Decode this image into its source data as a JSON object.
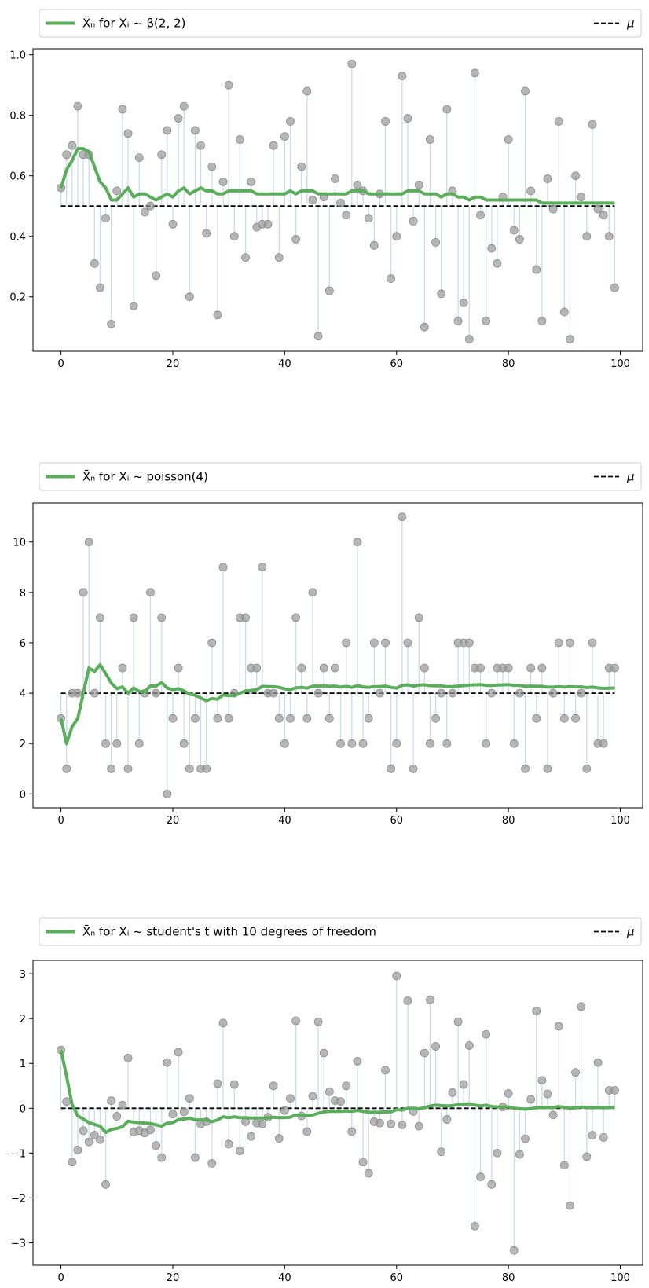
{
  "chart_data": [
    {
      "type": "line",
      "legend": {
        "series_label": "X̄ₙ for Xᵢ ~ β(2, 2)",
        "mu_label": "μ",
        "placement": "above-plot"
      },
      "mu": 0.5,
      "xlim": [
        -5,
        104
      ],
      "ylim": [
        0.02,
        1.02
      ],
      "xticks": [
        0,
        20,
        40,
        60,
        80,
        100
      ],
      "yticks": [
        0.2,
        0.4,
        0.6,
        0.8,
        1.0
      ],
      "ytick_labels": [
        "0.2",
        "0.4",
        "0.6",
        "0.8",
        "1.0"
      ],
      "samples": [
        0.56,
        0.67,
        0.7,
        0.83,
        0.67,
        0.67,
        0.31,
        0.23,
        0.46,
        0.11,
        0.55,
        0.82,
        0.74,
        0.17,
        0.66,
        0.48,
        0.5,
        0.27,
        0.67,
        0.75,
        0.44,
        0.79,
        0.83,
        0.2,
        0.75,
        0.7,
        0.41,
        0.63,
        0.14,
        0.58,
        0.9,
        0.4,
        0.72,
        0.33,
        0.58,
        0.43,
        0.44,
        0.44,
        0.7,
        0.33,
        0.73,
        0.78,
        0.39,
        0.63,
        0.88,
        0.52,
        0.07,
        0.53,
        0.22,
        0.59,
        0.51,
        0.47,
        0.97,
        0.57,
        0.55,
        0.46,
        0.37,
        0.54,
        0.78,
        0.26,
        0.4,
        0.93,
        0.79,
        0.45,
        0.57,
        0.1,
        0.72,
        0.38,
        0.21,
        0.82,
        0.55,
        0.12,
        0.18,
        0.06,
        0.94,
        0.47,
        0.12,
        0.36,
        0.31,
        0.53,
        0.72,
        0.42,
        0.39,
        0.88,
        0.55,
        0.29,
        0.12,
        0.59,
        0.49,
        0.78,
        0.15,
        0.06,
        0.6,
        0.53,
        0.4,
        0.77,
        0.49,
        0.47,
        0.4,
        0.23
      ],
      "running_mean": [
        0.56,
        0.62,
        0.65,
        0.69,
        0.69,
        0.68,
        0.63,
        0.58,
        0.56,
        0.52,
        0.52,
        0.54,
        0.56,
        0.53,
        0.54,
        0.54,
        0.53,
        0.52,
        0.53,
        0.54,
        0.53,
        0.55,
        0.56,
        0.54,
        0.55,
        0.56,
        0.55,
        0.55,
        0.54,
        0.54,
        0.55,
        0.55,
        0.55,
        0.55,
        0.55,
        0.54,
        0.54,
        0.54,
        0.54,
        0.54,
        0.54,
        0.55,
        0.54,
        0.55,
        0.55,
        0.55,
        0.54,
        0.54,
        0.54,
        0.54,
        0.54,
        0.54,
        0.55,
        0.55,
        0.55,
        0.54,
        0.54,
        0.54,
        0.54,
        0.54,
        0.54,
        0.54,
        0.55,
        0.55,
        0.55,
        0.54,
        0.54,
        0.54,
        0.53,
        0.54,
        0.54,
        0.53,
        0.53,
        0.52,
        0.53,
        0.53,
        0.52,
        0.52,
        0.52,
        0.52,
        0.52,
        0.52,
        0.52,
        0.52,
        0.52,
        0.52,
        0.51,
        0.51,
        0.51,
        0.51,
        0.51,
        0.51,
        0.51,
        0.51,
        0.51,
        0.51,
        0.51,
        0.51,
        0.51,
        0.51
      ]
    },
    {
      "type": "line",
      "legend": {
        "series_label": "X̄ₙ for Xᵢ ~ poisson(4)",
        "mu_label": "μ",
        "placement": "above-plot"
      },
      "mu": 4,
      "xlim": [
        -5,
        104
      ],
      "ylim": [
        -0.55,
        11.55
      ],
      "xticks": [
        0,
        20,
        40,
        60,
        80,
        100
      ],
      "yticks": [
        0,
        2,
        4,
        6,
        8,
        10
      ],
      "ytick_labels": [
        "0",
        "2",
        "4",
        "6",
        "8",
        "10"
      ],
      "samples": [
        3,
        1,
        4,
        4,
        8,
        10,
        4,
        7,
        2,
        1,
        2,
        5,
        1,
        7,
        2,
        4,
        8,
        4,
        7,
        0,
        3,
        5,
        2,
        1,
        3,
        1,
        1,
        6,
        3,
        9,
        3,
        4,
        7,
        7,
        5,
        5,
        9,
        4,
        4,
        3,
        2,
        3,
        7,
        5,
        3,
        8,
        4,
        5,
        3,
        5,
        2,
        6,
        2,
        10,
        2,
        3,
        6,
        4,
        6,
        1,
        2,
        11,
        6,
        1,
        7,
        5,
        2,
        3,
        4,
        2,
        4,
        6,
        6,
        6,
        5,
        5,
        2,
        4,
        5,
        5,
        5,
        2,
        4,
        1,
        5,
        3,
        5,
        1,
        4,
        6,
        3,
        6,
        3,
        4,
        1,
        6,
        2,
        2,
        5,
        5
      ],
      "running_mean": [
        3.0,
        2.0,
        2.67,
        3.0,
        4.0,
        5.0,
        4.86,
        5.13,
        4.78,
        4.4,
        4.18,
        4.25,
        4.0,
        4.21,
        4.07,
        4.06,
        4.29,
        4.28,
        4.42,
        4.2,
        4.14,
        4.18,
        4.09,
        3.96,
        3.92,
        3.81,
        3.7,
        3.79,
        3.76,
        3.93,
        3.9,
        3.91,
        4.0,
        4.09,
        4.11,
        4.14,
        4.27,
        4.26,
        4.26,
        4.23,
        4.17,
        4.14,
        4.21,
        4.23,
        4.2,
        4.28,
        4.28,
        4.29,
        4.27,
        4.28,
        4.24,
        4.27,
        4.23,
        4.3,
        4.25,
        4.23,
        4.26,
        4.26,
        4.28,
        4.23,
        4.2,
        4.31,
        4.33,
        4.28,
        4.32,
        4.33,
        4.3,
        4.29,
        4.29,
        4.26,
        4.26,
        4.28,
        4.3,
        4.32,
        4.33,
        4.34,
        4.31,
        4.31,
        4.32,
        4.33,
        4.34,
        4.31,
        4.31,
        4.27,
        4.28,
        4.27,
        4.27,
        4.24,
        4.24,
        4.26,
        4.24,
        4.26,
        4.25,
        4.25,
        4.22,
        4.24,
        4.21,
        4.19,
        4.2,
        4.21
      ]
    },
    {
      "type": "line",
      "legend": {
        "series_label": "X̄ₙ for Xᵢ ~ student's t with 10 degrees of freedom",
        "mu_label": "μ",
        "placement": "above-plot"
      },
      "mu": 0,
      "xlim": [
        -5,
        104
      ],
      "ylim": [
        -3.5,
        3.3
      ],
      "xticks": [
        0,
        20,
        40,
        60,
        80,
        100
      ],
      "yticks": [
        -3,
        -2,
        -1,
        0,
        1,
        2,
        3
      ],
      "ytick_labels": [
        "−3",
        "−2",
        "−1",
        "0",
        "1",
        "2",
        "3"
      ],
      "samples": [
        1.3,
        0.15,
        -1.2,
        -0.93,
        -0.5,
        -0.75,
        -0.6,
        -0.7,
        -1.7,
        0.17,
        -0.18,
        0.07,
        1.12,
        -0.53,
        -0.5,
        -0.55,
        -0.48,
        -0.83,
        -1.1,
        1.02,
        -0.13,
        1.25,
        -0.08,
        0.22,
        -1.1,
        -0.35,
        -0.3,
        -1.23,
        0.55,
        1.9,
        -0.8,
        0.53,
        -0.95,
        -0.3,
        -0.63,
        -0.33,
        -0.35,
        -0.2,
        0.5,
        -0.67,
        -0.05,
        0.22,
        1.95,
        -0.17,
        -0.52,
        0.27,
        1.93,
        1.23,
        0.37,
        0.17,
        0.15,
        0.5,
        -0.52,
        1.05,
        -1.2,
        -1.45,
        -0.3,
        -0.33,
        0.85,
        -0.35,
        2.95,
        -0.37,
        2.4,
        -0.07,
        -0.4,
        1.23,
        2.42,
        1.38,
        -0.97,
        -0.25,
        0.35,
        1.93,
        0.53,
        1.4,
        -2.63,
        -1.53,
        1.65,
        -1.7,
        -1.0,
        0.03,
        0.33,
        -3.17,
        -1.03,
        -0.68,
        0.2,
        2.17,
        0.62,
        0.32,
        -0.15,
        1.83,
        -1.27,
        -2.17,
        0.8,
        2.27,
        -1.08,
        -0.6,
        1.02,
        -0.65,
        0.4,
        0.4
      ],
      "running_mean": [
        1.3,
        0.72,
        0.08,
        -0.17,
        -0.24,
        -0.32,
        -0.36,
        -0.4,
        -0.54,
        -0.47,
        -0.45,
        -0.41,
        -0.29,
        -0.31,
        -0.32,
        -0.33,
        -0.34,
        -0.37,
        -0.4,
        -0.33,
        -0.32,
        -0.25,
        -0.24,
        -0.22,
        -0.26,
        -0.26,
        -0.26,
        -0.3,
        -0.26,
        -0.19,
        -0.21,
        -0.19,
        -0.21,
        -0.21,
        -0.22,
        -0.22,
        -0.22,
        -0.22,
        -0.2,
        -0.21,
        -0.21,
        -0.2,
        -0.15,
        -0.15,
        -0.16,
        -0.15,
        -0.11,
        -0.08,
        -0.07,
        -0.07,
        -0.07,
        -0.06,
        -0.07,
        -0.05,
        -0.07,
        -0.09,
        -0.09,
        -0.09,
        -0.08,
        -0.08,
        -0.03,
        -0.04,
        0.0,
        0.0,
        -0.01,
        0.01,
        0.05,
        0.07,
        0.06,
        0.05,
        0.06,
        0.08,
        0.09,
        0.1,
        0.07,
        0.05,
        0.07,
        0.04,
        0.03,
        0.03,
        0.03,
        0.0,
        -0.01,
        -0.02,
        -0.01,
        0.01,
        0.02,
        0.02,
        0.02,
        0.04,
        0.02,
        0.0,
        0.01,
        0.03,
        0.02,
        0.01,
        0.02,
        0.01,
        0.02,
        0.02
      ]
    }
  ],
  "colors": {
    "running_mean": "#5aad5a",
    "markers": "#999999",
    "stems": "#c6dcec",
    "mu_line": "#000000"
  }
}
